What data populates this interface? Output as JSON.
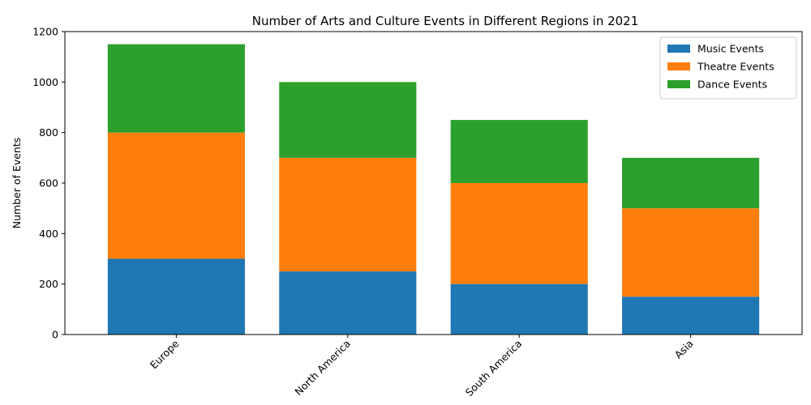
{
  "chart_data": {
    "type": "bar",
    "stacked": true,
    "title": "Number of Arts and Culture Events in Different Regions in 2021",
    "xlabel": "",
    "ylabel": "Number of Events",
    "categories": [
      "Europe",
      "North America",
      "South America",
      "Asia"
    ],
    "series": [
      {
        "name": "Music Events",
        "color": "#1f77b4",
        "values": [
          300,
          250,
          200,
          150
        ]
      },
      {
        "name": "Theatre Events",
        "color": "#ff7f0e",
        "values": [
          500,
          450,
          400,
          350
        ]
      },
      {
        "name": "Dance Events",
        "color": "#2ca02c",
        "values": [
          350,
          300,
          250,
          200
        ]
      }
    ],
    "ylim": [
      0,
      1200
    ],
    "yticks": [
      0,
      200,
      400,
      600,
      800,
      1000,
      1200
    ],
    "grid": false,
    "legend_position": "top-right",
    "x_tick_rotation": 45
  }
}
